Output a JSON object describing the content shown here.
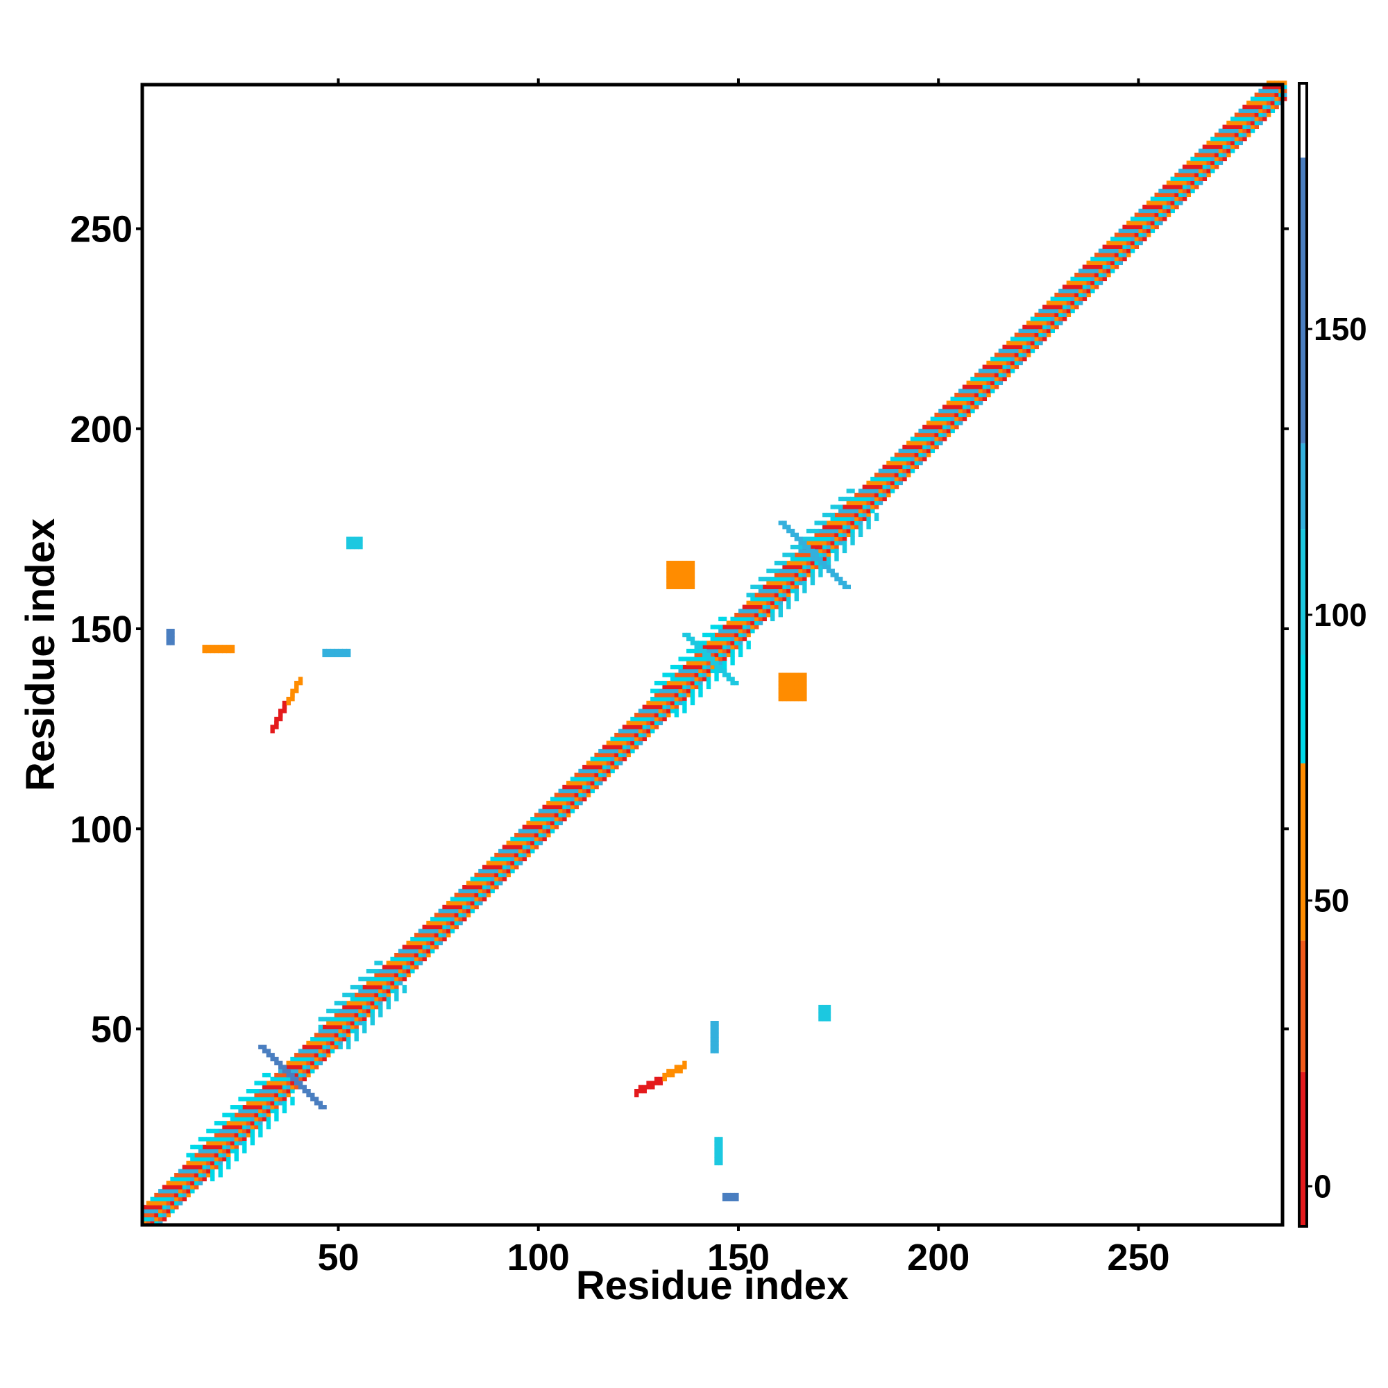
{
  "chart_data": {
    "type": "heatmap",
    "title": "",
    "xlabel": "Residue index",
    "ylabel": "Residue index",
    "xlim": [
      1,
      286
    ],
    "ylim": [
      1,
      286
    ],
    "x_ticks": [
      50,
      100,
      150,
      200,
      250
    ],
    "y_ticks": [
      50,
      100,
      150,
      200,
      250
    ],
    "colorbar": {
      "ticks": [
        0,
        50,
        100,
        150
      ],
      "range": [
        -7,
        193
      ],
      "bands": [
        {
          "from": -7,
          "to": 20,
          "color": "#e41a1c"
        },
        {
          "from": 20,
          "to": 43,
          "color": "#f25a1a"
        },
        {
          "from": 43,
          "to": 74,
          "color": "#ff8c00"
        },
        {
          "from": 74,
          "to": 93,
          "color": "#00d8e8"
        },
        {
          "from": 93,
          "to": 115,
          "color": "#1cc8e0"
        },
        {
          "from": 115,
          "to": 130,
          "color": "#33b0dd"
        },
        {
          "from": 130,
          "to": 180,
          "color": "#4a7ec0"
        },
        {
          "from": 180,
          "to": 193,
          "color": "#ffffff"
        }
      ]
    },
    "diagonal": {
      "start": 1,
      "end": 286,
      "half_width": 4,
      "alt_colors": [
        "#e41a1c",
        "#ff8c00",
        "#00d8e8",
        "#f25a1a",
        "#33b0dd"
      ],
      "halo_regions": [
        {
          "from": 12,
          "to": 32,
          "width": 7,
          "color": "#00d8e8"
        },
        {
          "from": 45,
          "to": 60,
          "width": 7,
          "color": "#1cc8e0"
        },
        {
          "from": 128,
          "to": 146,
          "width": 7,
          "color": "#00d8e8"
        },
        {
          "from": 152,
          "to": 178,
          "width": 7,
          "color": "#1cc8e0"
        }
      ]
    },
    "contacts": [
      {
        "x": [
          30,
          45
        ],
        "y": [
          30,
          45
        ],
        "shape": "anti",
        "color": "#4a7ec0"
      },
      {
        "x": [
          124,
          131
        ],
        "y": [
          33,
          37
        ],
        "shape": "line",
        "color": "#e41a1c"
      },
      {
        "x": [
          131,
          136
        ],
        "y": [
          37,
          40
        ],
        "shape": "line",
        "color": "#ff8c00"
      },
      {
        "x": [
          33,
          37
        ],
        "y": [
          124,
          131
        ],
        "shape": "line",
        "color": "#e41a1c"
      },
      {
        "x": [
          37,
          40
        ],
        "y": [
          131,
          136
        ],
        "shape": "line",
        "color": "#ff8c00"
      },
      {
        "x": [
          170,
          172
        ],
        "y": [
          52,
          55
        ],
        "shape": "block",
        "color": "#1cc8e0"
      },
      {
        "x": [
          52,
          55
        ],
        "y": [
          170,
          172
        ],
        "shape": "block",
        "color": "#1cc8e0"
      },
      {
        "x": [
          146,
          149
        ],
        "y": [
          7,
          8
        ],
        "shape": "block",
        "color": "#4a7ec0"
      },
      {
        "x": [
          7,
          8
        ],
        "y": [
          146,
          149
        ],
        "shape": "block",
        "color": "#4a7ec0"
      },
      {
        "x": [
          144,
          145
        ],
        "y": [
          16,
          22
        ],
        "shape": "block",
        "color": "#1cc8e0"
      },
      {
        "x": [
          143,
          144
        ],
        "y": [
          44,
          51
        ],
        "shape": "block",
        "color": "#33b0dd"
      },
      {
        "x": [
          160,
          166
        ],
        "y": [
          132,
          138
        ],
        "shape": "block",
        "color": "#ff8c00"
      },
      {
        "x": [
          132,
          138
        ],
        "y": [
          160,
          166
        ],
        "shape": "block",
        "color": "#ff8c00"
      },
      {
        "x": [
          16,
          23
        ],
        "y": [
          144,
          145
        ],
        "shape": "block",
        "color": "#ff8c00"
      },
      {
        "x": [
          46,
          52
        ],
        "y": [
          143,
          144
        ],
        "shape": "block",
        "color": "#33b0dd"
      },
      {
        "x": [
          160,
          176
        ],
        "y": [
          160,
          176
        ],
        "shape": "anti",
        "color": "#33b0dd"
      },
      {
        "x": [
          136,
          148
        ],
        "y": [
          136,
          148
        ],
        "shape": "anti",
        "color": "#1cc8e0"
      }
    ]
  }
}
